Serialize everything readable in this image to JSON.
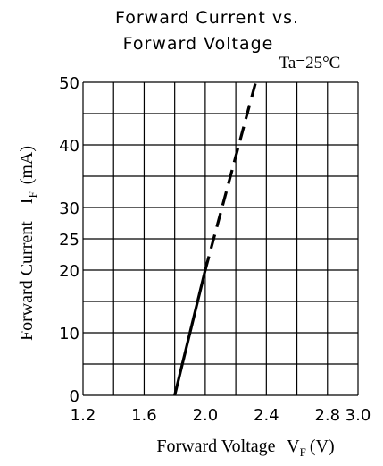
{
  "chart_data": {
    "type": "line",
    "title": "Forward Current vs.",
    "subtitle": "Forward Voltage",
    "condition": "Ta=25°C",
    "xlabel": "Forward Voltage",
    "xlabel_symbol": "V",
    "xlabel_subscript": "F",
    "xlabel_unit": "(V)",
    "ylabel": "Forward Current",
    "ylabel_symbol": "I",
    "ylabel_subscript": "F",
    "ylabel_unit": "(mA)",
    "xlim": [
      1.2,
      3.0
    ],
    "ylim": [
      0,
      50
    ],
    "x_ticks": [
      1.2,
      1.6,
      2.0,
      2.4,
      2.8,
      3.0
    ],
    "x_tick_labels": [
      "1.2",
      "1.6",
      "2.0",
      "2.4",
      "2.8",
      "3.0"
    ],
    "y_ticks": [
      0,
      10,
      20,
      25,
      30,
      40,
      50
    ],
    "y_tick_labels": [
      "0",
      "10",
      "20",
      "25",
      "30",
      "40",
      "50"
    ],
    "grid": true,
    "series": [
      {
        "style": "solid",
        "x": [
          1.8,
          2.0
        ],
        "y": [
          0,
          20
        ]
      },
      {
        "style": "dashed",
        "x": [
          2.0,
          2.33
        ],
        "y": [
          20,
          50
        ]
      }
    ]
  }
}
